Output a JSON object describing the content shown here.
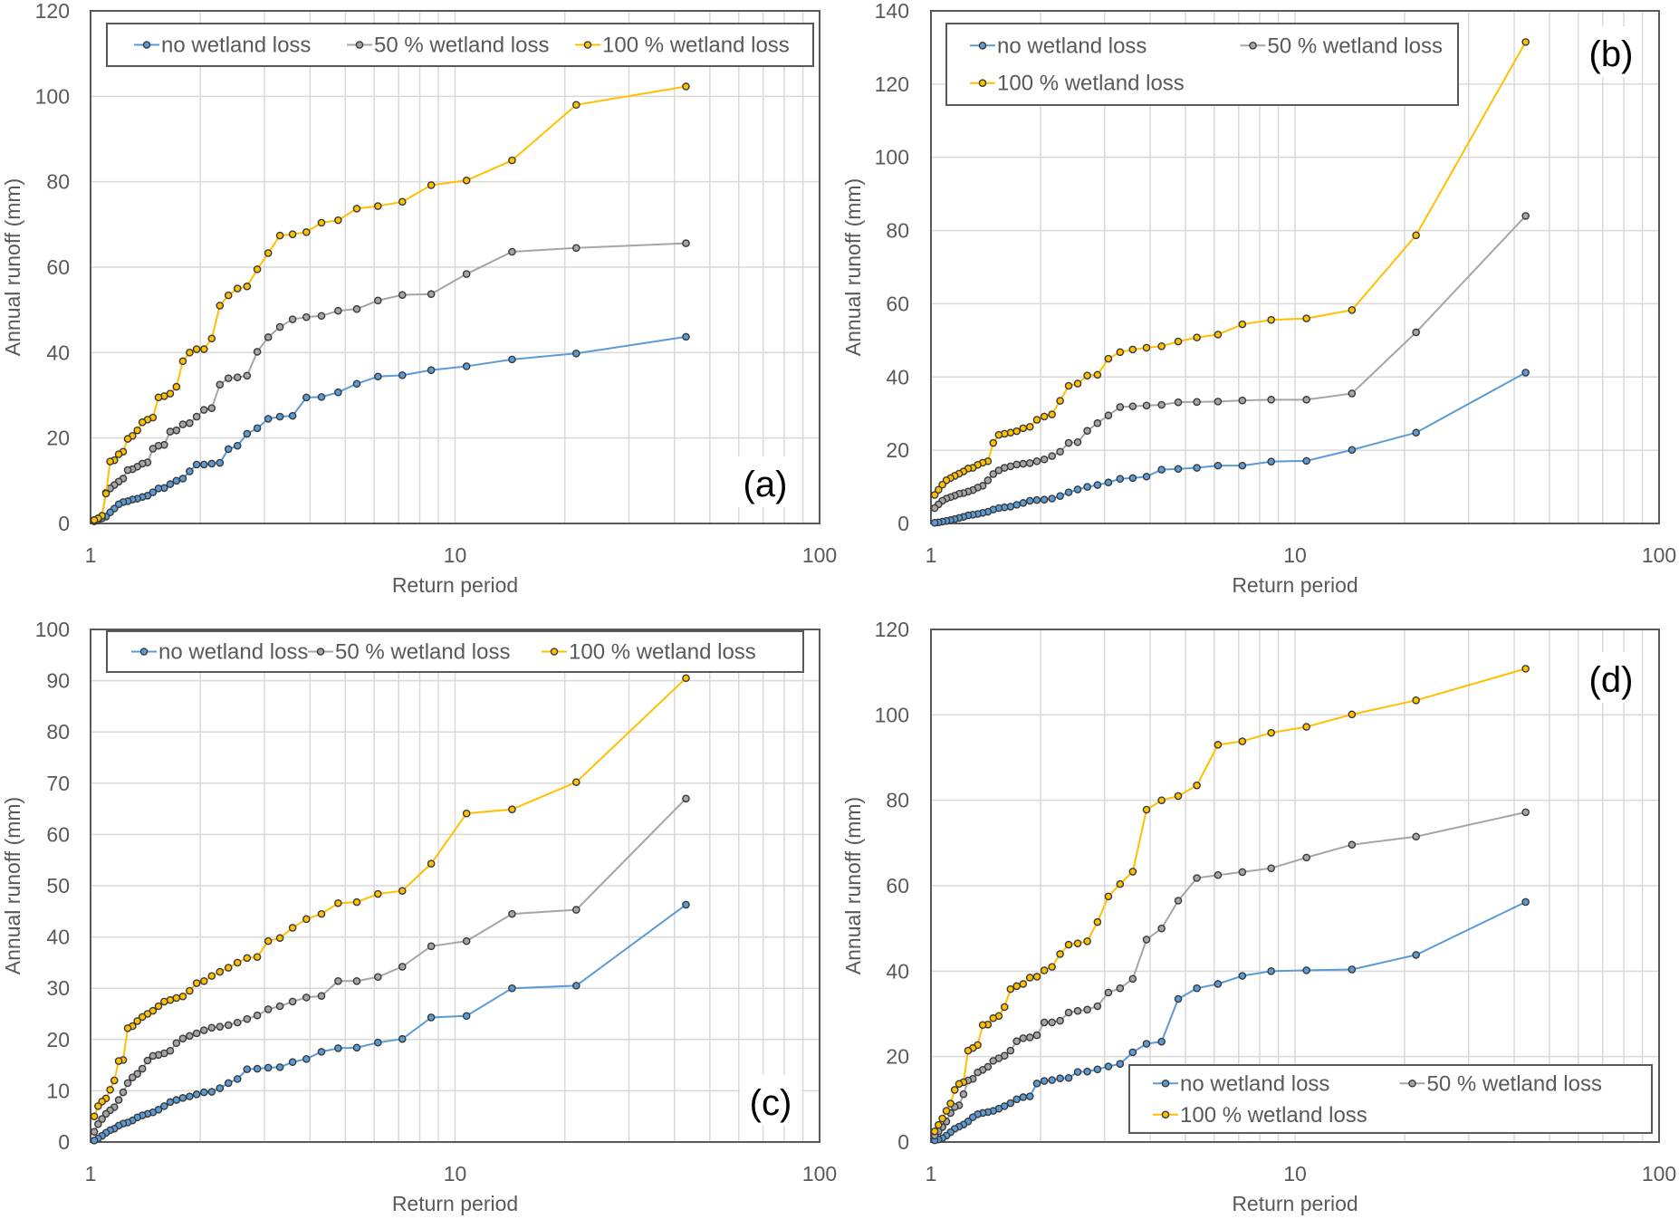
{
  "colors": {
    "no": "#5B9BD5",
    "fifty": "#A5A5A5",
    "full": "#FFC000",
    "marker_edge": "#3a3a3a",
    "grid": "#D9D9D9",
    "axis": "#595959"
  },
  "chart_data": [
    {
      "type": "line",
      "panel_label": "(a)",
      "xlabel": "Return period",
      "ylabel": "Annual runoff (mm)",
      "xscale": "log",
      "xlim": [
        1,
        100
      ],
      "ylim": [
        0,
        120
      ],
      "yticks": [
        0,
        20,
        40,
        60,
        80,
        100,
        120
      ],
      "xticks": [
        1,
        10,
        100
      ],
      "grid": true,
      "legend": {
        "placement": "top",
        "rows": 1
      },
      "series": [
        {
          "name": "no wetland loss",
          "color_key": "no",
          "values": [
            43.7,
            39.8,
            38.4,
            36.8,
            35.9,
            34.7,
            34.4,
            32.7,
            30.7,
            29.6,
            29.5,
            25.2,
            25,
            24.5,
            22.3,
            21,
            18.2,
            17.4,
            14.2,
            14,
            13.8,
            13.8,
            12.2,
            10.5,
            10,
            9.2,
            8.3,
            8.2,
            7.3,
            6.5,
            6.2,
            5.8,
            5.6,
            5.2,
            5,
            4.5,
            3.5,
            2.6,
            1.6,
            1.2,
            0.8,
            0.5
          ]
        },
        {
          "name": "50 % wetland loss",
          "color_key": "fifty",
          "values": [
            65.6,
            64.5,
            63.6,
            58.4,
            53.7,
            53.5,
            52.2,
            50.2,
            49.8,
            48.6,
            48.3,
            47.8,
            46,
            43.6,
            40.2,
            34.6,
            34.2,
            34,
            32.5,
            27,
            26.6,
            25,
            23.5,
            23.2,
            21.8,
            21.5,
            18.4,
            18.2,
            17.5,
            14.3,
            14,
            13.3,
            12.7,
            12.5,
            10.5,
            9.8,
            9,
            8.2,
            7.2,
            1.8,
            1.2,
            0.8
          ]
        },
        {
          "name": "100 % wetland loss",
          "color_key": "full",
          "values": [
            102.3,
            98,
            85,
            80.3,
            79.2,
            75.3,
            74.3,
            73.7,
            71,
            70.4,
            68.2,
            67.7,
            67.4,
            63.3,
            59.5,
            55.5,
            55,
            53.4,
            51,
            43.3,
            40.8,
            40.8,
            40,
            38,
            32,
            30.4,
            29.8,
            29.5,
            24.8,
            24.3,
            23.7,
            21.8,
            20.5,
            19.8,
            16.8,
            16.2,
            14.8,
            14.5,
            7,
            1.8,
            1.2,
            0.8
          ]
        }
      ]
    },
    {
      "type": "line",
      "panel_label": "(b)",
      "xlabel": "Return period",
      "ylabel": "Annual runoff (mm)",
      "xscale": "log",
      "xlim": [
        1,
        100
      ],
      "ylim": [
        0,
        140
      ],
      "yticks": [
        0,
        20,
        40,
        60,
        80,
        100,
        120,
        140
      ],
      "xticks": [
        1,
        10,
        100
      ],
      "grid": true,
      "legend": {
        "placement": "top-left",
        "rows": 2
      },
      "series": [
        {
          "name": "no wetland loss",
          "color_key": "no",
          "values": [
            41.2,
            24.8,
            20.1,
            17.1,
            16.9,
            15.8,
            15.8,
            15.2,
            14.9,
            14.7,
            12.8,
            12.4,
            12.2,
            11.2,
            10.5,
            10,
            9.3,
            8.5,
            7.5,
            6.8,
            6.5,
            6.4,
            6.2,
            5.6,
            5.1,
            4.6,
            4.4,
            4.2,
            3.8,
            3.2,
            2.9,
            2.6,
            2.4,
            2.2,
            1.8,
            1.5,
            1.2,
            0.9,
            0.7,
            0.5,
            0.3,
            0.2
          ]
        },
        {
          "name": "50 % wetland loss",
          "color_key": "fifty",
          "values": [
            84,
            52.2,
            35.5,
            33.8,
            33.8,
            33.6,
            33.3,
            33.2,
            33.1,
            32.4,
            32.2,
            32,
            31.8,
            29.5,
            27.4,
            25.3,
            22.2,
            22,
            19.6,
            18.4,
            17.5,
            17,
            16.5,
            16.3,
            16.1,
            15.6,
            15.2,
            14.5,
            13.5,
            11.8,
            10.3,
            9.8,
            9.1,
            8.7,
            8.3,
            8.1,
            7.6,
            7.2,
            6.8,
            6.2,
            5.2,
            4.2
          ]
        },
        {
          "name": "100 % wetland loss",
          "color_key": "full",
          "values": [
            131.5,
            78.7,
            58.3,
            56,
            55.6,
            54.4,
            51.6,
            50.8,
            49.7,
            48.4,
            48,
            47.5,
            46.8,
            45,
            40.6,
            40.4,
            38.2,
            37.6,
            33.5,
            29.8,
            29.2,
            28.3,
            26.4,
            26,
            25.2,
            24.8,
            24.5,
            24.2,
            22,
            17,
            16.6,
            16,
            15.2,
            15,
            14.2,
            13.6,
            13,
            12.4,
            11.8,
            10.6,
            9.2,
            7.8
          ]
        }
      ]
    },
    {
      "type": "line",
      "panel_label": "(c)",
      "xlabel": "Return period",
      "ylabel": "Annual runoff (mm)",
      "xscale": "log",
      "xlim": [
        1,
        100
      ],
      "ylim": [
        0,
        100
      ],
      "yticks": [
        0,
        10,
        20,
        30,
        40,
        50,
        60,
        70,
        80,
        90,
        100
      ],
      "xticks": [
        1,
        10,
        100
      ],
      "grid": true,
      "legend": {
        "placement": "top",
        "rows": 1
      },
      "series": [
        {
          "name": "no wetland loss",
          "color_key": "no",
          "values": [
            46.3,
            30.5,
            30,
            24.6,
            24.3,
            20.1,
            19.4,
            18.4,
            18.3,
            17.6,
            16.2,
            15.6,
            14.6,
            14.5,
            14.3,
            14.2,
            12.3,
            11.5,
            10.5,
            9.8,
            9.7,
            9.3,
            8.9,
            8.6,
            8.2,
            7.8,
            7,
            6.3,
            5.8,
            5.5,
            5.2,
            4.8,
            4.2,
            3.8,
            3.6,
            3.2,
            2.6,
            2.3,
            1.8,
            1.2,
            0.7,
            0.3
          ]
        },
        {
          "name": "50 % wetland loss",
          "color_key": "fifty",
          "values": [
            67,
            45.3,
            44.5,
            39.2,
            38.2,
            34.2,
            32.2,
            31.4,
            31.4,
            28.5,
            28.2,
            27.4,
            26.5,
            25.9,
            24.7,
            24,
            23.3,
            22.8,
            22.5,
            22.3,
            21.8,
            21.2,
            20.7,
            20.2,
            19.3,
            17.8,
            17.3,
            17,
            16.8,
            15.9,
            14.3,
            13.3,
            12.6,
            11.5,
            9.7,
            8.2,
            6.8,
            6.2,
            5.5,
            4.5,
            3.5,
            2
          ]
        },
        {
          "name": "100 % wetland loss",
          "color_key": "full",
          "values": [
            90.5,
            70.2,
            64.9,
            64.1,
            54.3,
            49,
            48.4,
            46.8,
            46.6,
            44.5,
            43.5,
            41.8,
            39.8,
            39.2,
            36.1,
            35.9,
            35,
            34,
            33.2,
            32.4,
            31.4,
            31,
            29.5,
            28.4,
            28.1,
            27.7,
            27.4,
            26.5,
            25.6,
            25,
            24.4,
            23.6,
            22.6,
            22.2,
            16,
            15.8,
            12,
            10.2,
            8.5,
            7.9,
            7,
            5
          ]
        }
      ]
    },
    {
      "type": "line",
      "panel_label": "(d)",
      "xlabel": "Return period",
      "ylabel": "Annual runoff (mm)",
      "xscale": "log",
      "xlim": [
        1,
        100
      ],
      "ylim": [
        0,
        120
      ],
      "yticks": [
        0,
        20,
        40,
        60,
        80,
        100,
        120
      ],
      "xticks": [
        1,
        10,
        100
      ],
      "grid": true,
      "legend": {
        "placement": "bottom-right",
        "rows": 2
      },
      "series": [
        {
          "name": "no wetland loss",
          "color_key": "no",
          "values": [
            56.2,
            43.8,
            40.4,
            40.2,
            40,
            38.9,
            37,
            36,
            33.5,
            23.5,
            23,
            21,
            18.3,
            17.7,
            17,
            16.5,
            16.4,
            15,
            14.9,
            14.5,
            14.3,
            13.7,
            10.7,
            10.5,
            10,
            9.1,
            8.4,
            7.8,
            7.3,
            7,
            6.8,
            6.5,
            5.8,
            4.8,
            4.1,
            3.6,
            3.1,
            2.3,
            1.5,
            0.9,
            0.6,
            0.4
          ]
        },
        {
          "name": "50 % wetland loss",
          "color_key": "fifty",
          "values": [
            77.2,
            71.5,
            69.6,
            66.6,
            64.1,
            63.2,
            62.5,
            61.8,
            56.5,
            50,
            47.4,
            38.2,
            36,
            35,
            31.8,
            31,
            30.7,
            30.3,
            28.4,
            28,
            28,
            25,
            24.5,
            24.3,
            23.6,
            21.4,
            20.2,
            19.6,
            19,
            17.6,
            16.9,
            16.3,
            14.8,
            14.4,
            11.2,
            8.6,
            8.2,
            6.8,
            4.8,
            3.5,
            2.5,
            1.5
          ]
        },
        {
          "name": "100 % wetland loss",
          "color_key": "full",
          "values": [
            110.8,
            103.4,
            100.1,
            97.2,
            95.8,
            93.8,
            93,
            83.5,
            81,
            80,
            77.8,
            63.3,
            60.4,
            57.5,
            51.5,
            47,
            46.5,
            46.2,
            44,
            41,
            40.2,
            38.7,
            38.5,
            37,
            36.5,
            35.8,
            31.6,
            29.5,
            29,
            27.5,
            27.4,
            22.7,
            22,
            21.4,
            14,
            13.6,
            12.2,
            9,
            7.3,
            5.5,
            4,
            2.5
          ]
        }
      ]
    }
  ]
}
